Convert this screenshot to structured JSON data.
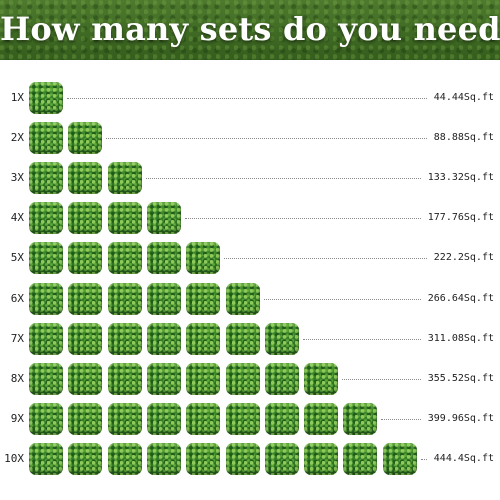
{
  "header": {
    "title": "How many sets do you need"
  },
  "rows": [
    {
      "label": "1X",
      "count": 1,
      "area": "44.44Sq.ft"
    },
    {
      "label": "2X",
      "count": 2,
      "area": "88.88Sq.ft"
    },
    {
      "label": "3X",
      "count": 3,
      "area": "133.32Sq.ft"
    },
    {
      "label": "4X",
      "count": 4,
      "area": "177.76Sq.ft"
    },
    {
      "label": "5X",
      "count": 5,
      "area": "222.2Sq.ft"
    },
    {
      "label": "6X",
      "count": 6,
      "area": "266.64Sq.ft"
    },
    {
      "label": "7X",
      "count": 7,
      "area": "311.08Sq.ft"
    },
    {
      "label": "8X",
      "count": 8,
      "area": "355.52Sq.ft"
    },
    {
      "label": "9X",
      "count": 9,
      "area": "399.96Sq.ft"
    },
    {
      "label": "10X",
      "count": 10,
      "area": "444.4Sq.ft"
    }
  ]
}
